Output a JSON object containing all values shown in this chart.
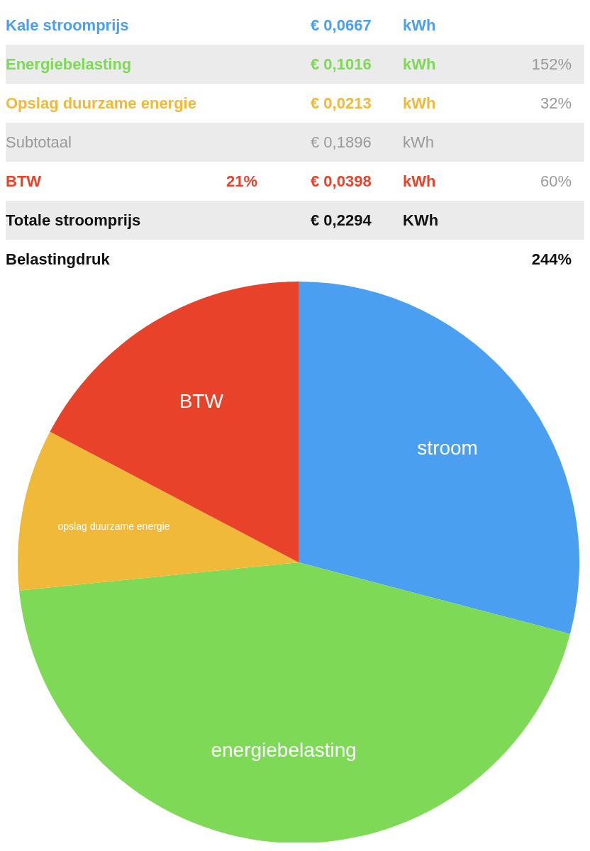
{
  "chart_data": {
    "type": "pie",
    "categories": [
      "stroom",
      "energiebelasting",
      "opslag duurzame energie",
      "BTW"
    ],
    "values": [
      29.1,
      44.3,
      9.3,
      17.3
    ],
    "colors": [
      "#4a9ff0",
      "#7ed957",
      "#f0b93a",
      "#e8432a"
    ],
    "legend": false,
    "annotations": [
      "Kale stroomprijs",
      "€ 0,0667",
      "kWh",
      "Energiebelasting",
      "€ 0,1016",
      "kWh",
      "152%",
      "Opslag duurzame energie",
      "€ 0,0213",
      "kWh",
      "32%",
      "Subtotaal",
      "€ 0,1896",
      "kWh",
      "BTW",
      "21%",
      "€ 0,0398",
      "kWh",
      "60%",
      "Totale stroomprijs",
      "€ 0,2294",
      "KWh",
      "Belastingdruk",
      "244%"
    ]
  }
}
